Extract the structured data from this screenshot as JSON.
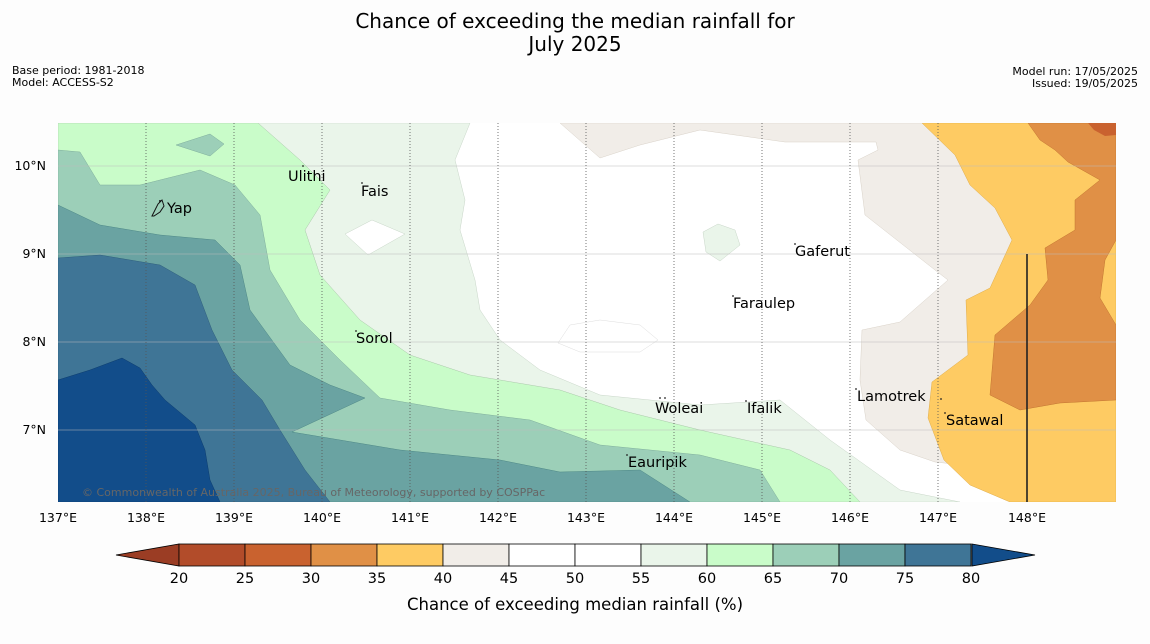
{
  "title": {
    "line1": "Chance of exceeding the median rainfall for",
    "line2": "July 2025"
  },
  "meta_left": {
    "base_period": "Base period: 1981-2018",
    "model": "Model: ACCESS-S2"
  },
  "meta_right": {
    "model_run": "Model run: 17/05/2025",
    "issued": "Issued: 19/05/2025"
  },
  "credit": "© Commonwealth of Australia 2025, Bureau of Meteorology, supported by COSPPac",
  "map": {
    "lon_range": [
      137,
      149
    ],
    "lat_range": [
      6.2,
      10.5
    ],
    "lon_ticks": [
      "137°E",
      "138°E",
      "139°E",
      "140°E",
      "141°E",
      "142°E",
      "143°E",
      "144°E",
      "145°E",
      "146°E",
      "147°E",
      "148°E"
    ],
    "lat_ticks": [
      "10°N",
      "9°N",
      "8°N",
      "7°N"
    ],
    "places": [
      {
        "name": "Ulithi",
        "label": "Ulithi"
      },
      {
        "name": "Fais",
        "label": "Fais"
      },
      {
        "name": "Yap",
        "label": "Yap"
      },
      {
        "name": "Gaferut",
        "label": "Gaferut"
      },
      {
        "name": "Faraulep",
        "label": "Faraulep"
      },
      {
        "name": "Sorol",
        "label": "Sorol"
      },
      {
        "name": "Lamotrek",
        "label": "Lamotrek"
      },
      {
        "name": "Woleai",
        "label": "Woleai"
      },
      {
        "name": "Ifalik",
        "label": "Ifalik"
      },
      {
        "name": "Satawal",
        "label": "Satawal"
      },
      {
        "name": "Eauripik",
        "label": "Eauripik"
      }
    ]
  },
  "colorbar": {
    "label": "Chance of exceeding median rainfall (%)",
    "ticks": [
      "20",
      "25",
      "30",
      "35",
      "40",
      "45",
      "50",
      "55",
      "60",
      "65",
      "70",
      "75",
      "80"
    ],
    "colors": [
      "#b24c2a",
      "#c9622f",
      "#e09046",
      "#fecb63",
      "#f1ede8",
      "#ffffff",
      "#ffffff",
      "#eaf5ea",
      "#c9fcc9",
      "#9ccfb8",
      "#6aa3a2",
      "#3f7596",
      "#124d8a"
    ],
    "low_color": "#9b3d24",
    "high_color": "#124d8a"
  }
}
